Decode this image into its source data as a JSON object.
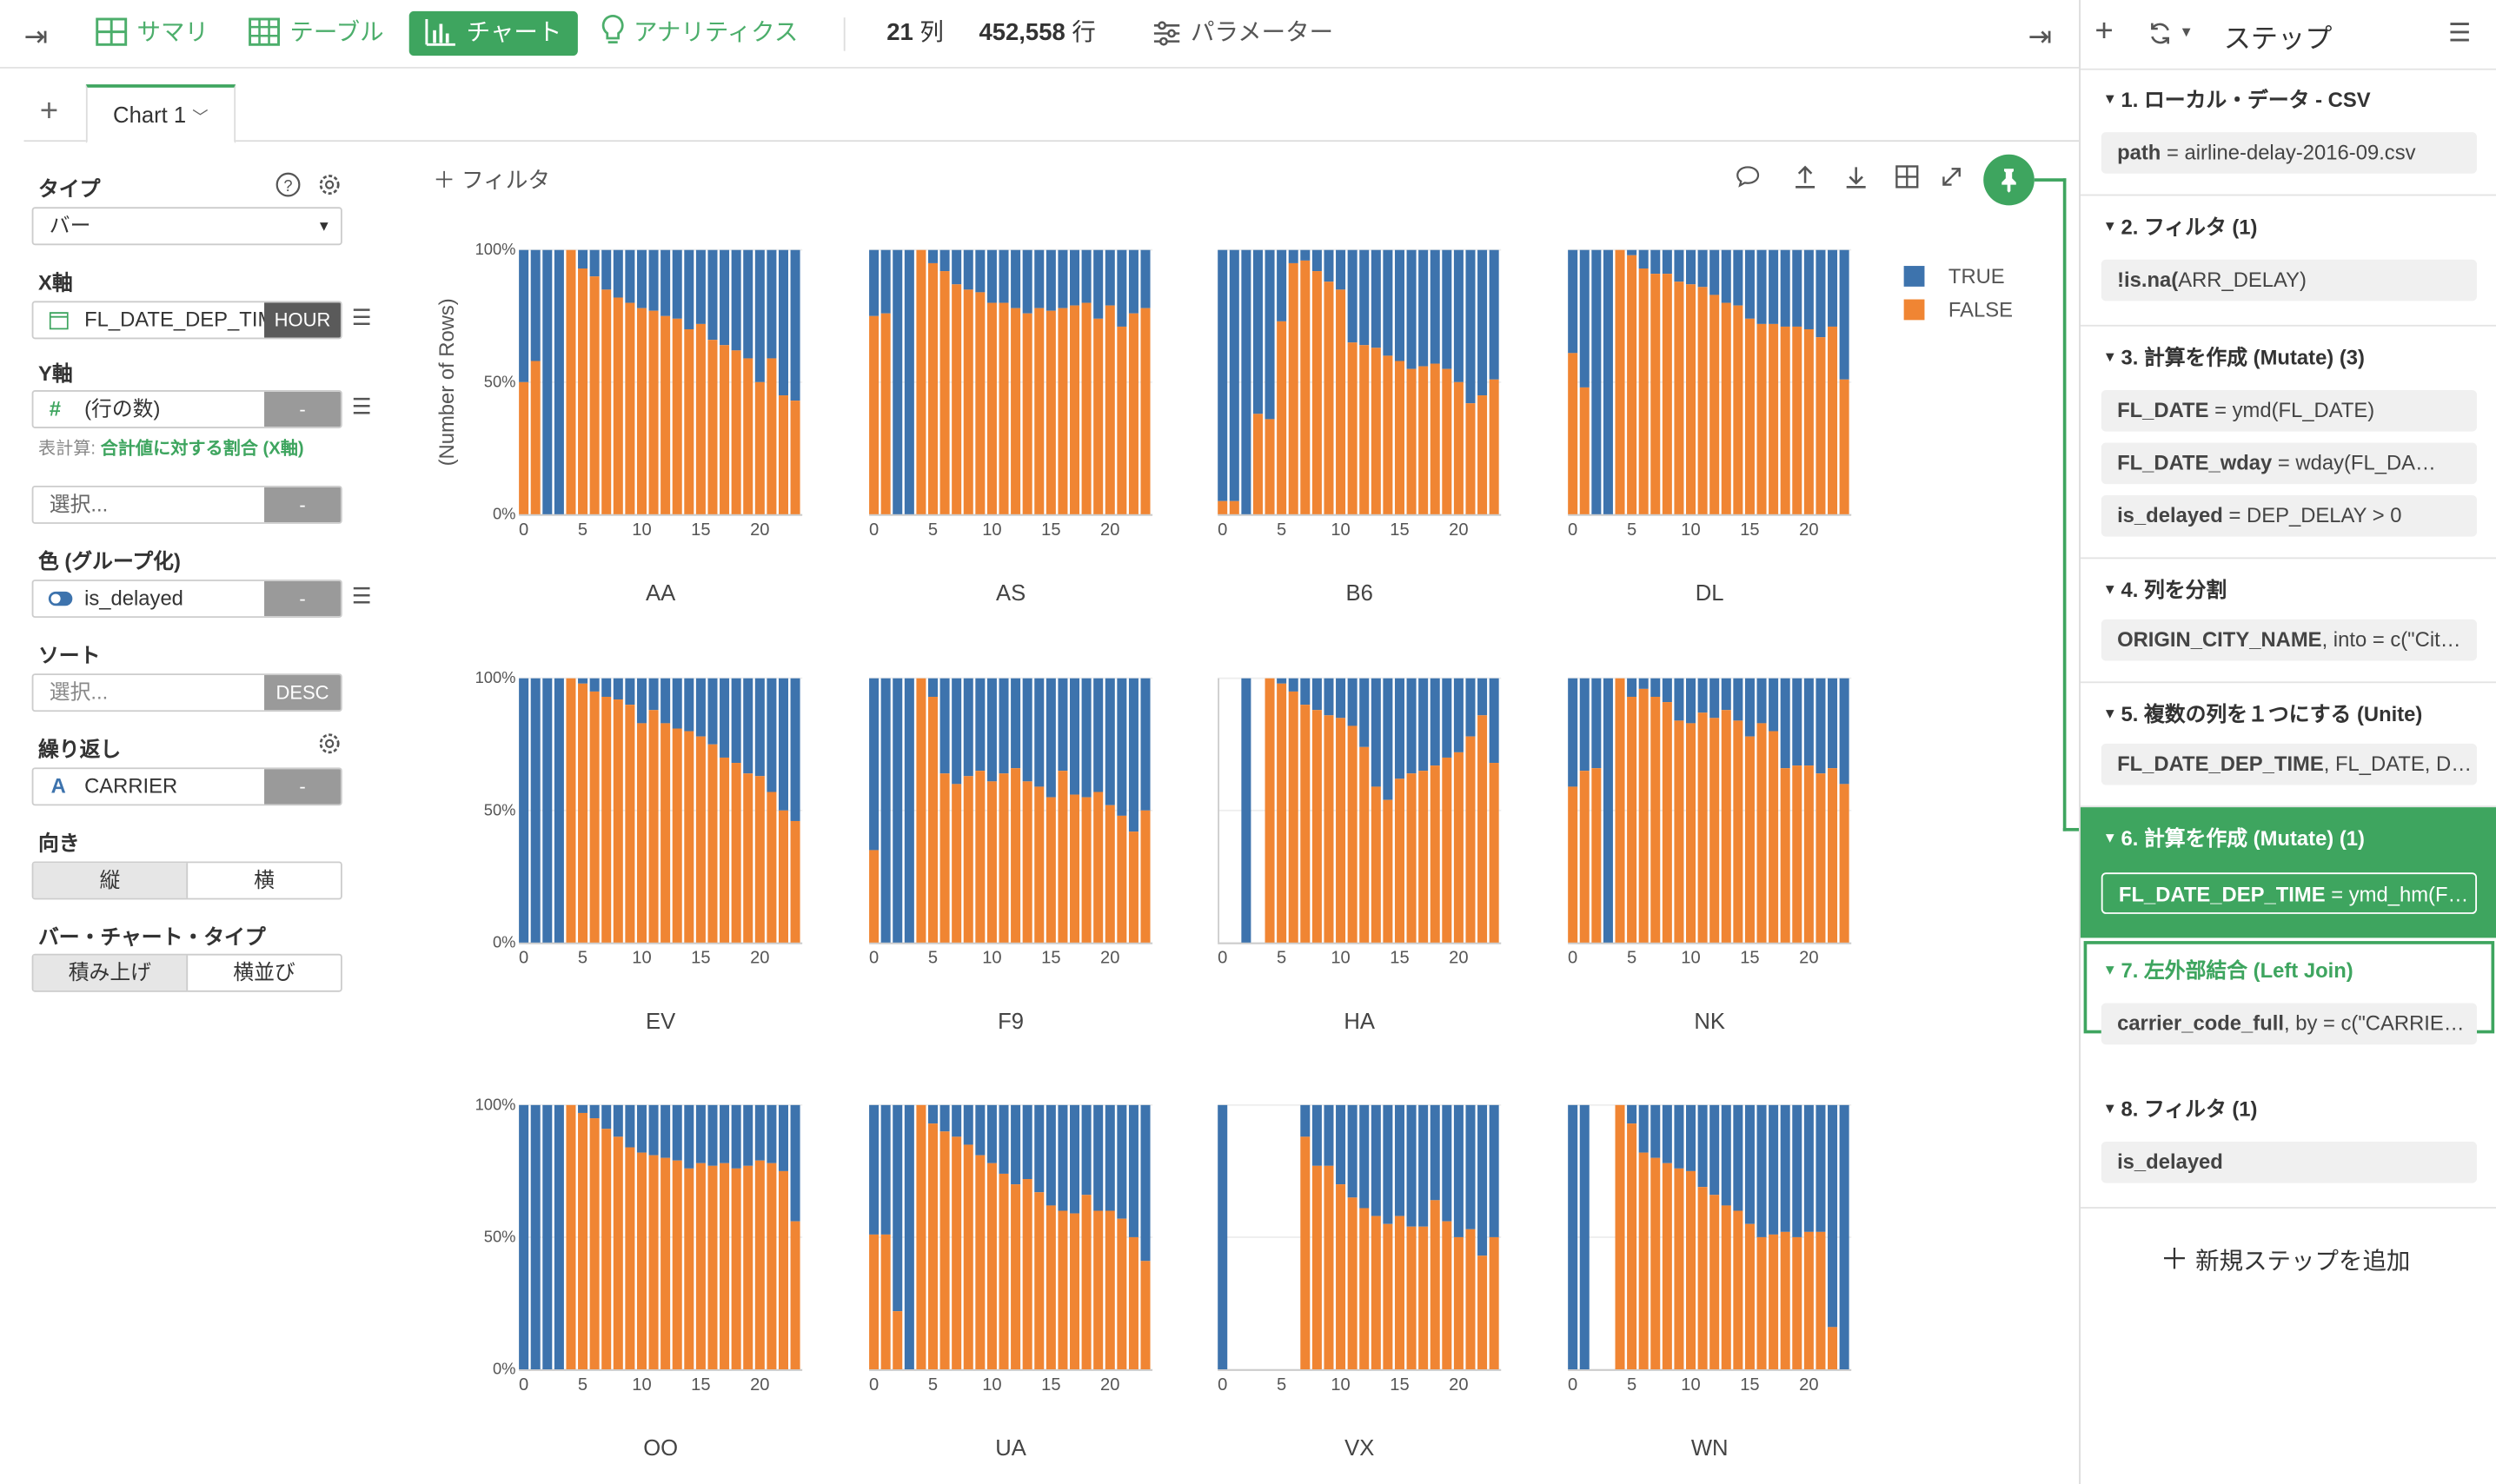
{
  "toolbar": {
    "summary": "サマリ",
    "table": "テーブル",
    "chart": "チャート",
    "analytics": "アナリティクス",
    "cols_num": "21",
    "cols_unit": "列",
    "rows_num": "452,558",
    "rows_unit": "行",
    "params": "パラメーター"
  },
  "right_header": {
    "title": "ステップ"
  },
  "tabs": {
    "chart1": "Chart 1"
  },
  "config": {
    "type_label": "タイプ",
    "type_value": "バー",
    "x_label": "X軸",
    "x_value": "FL_DATE_DEP_TIM",
    "x_unit": "HOUR",
    "y_label": "Y軸",
    "y_value": "(行の数)",
    "y_btn": "-",
    "calc_prefix": "表計算:",
    "calc_value": "合計値に対する割合 (X軸)",
    "select_placeholder": "選択...",
    "select_btn": "-",
    "color_label": "色 (グループ化)",
    "color_value": "is_delayed",
    "color_btn": "-",
    "sort_label": "ソート",
    "sort_placeholder": "選択...",
    "sort_btn": "DESC",
    "repeat_label": "繰り返し",
    "repeat_value": "CARRIER",
    "repeat_btn": "-",
    "orient_label": "向き",
    "orient_v": "縦",
    "orient_h": "横",
    "bartype_label": "バー・チャート・タイプ",
    "bartype_stack": "積み上げ",
    "bartype_side": "横並び"
  },
  "filter_label": "フィルタ",
  "steps": [
    {
      "head": "1. ローカル・データ - CSV",
      "items": [
        {
          "k": "path",
          "v": " = airline-delay-2016-09.csv"
        }
      ]
    },
    {
      "head": "2. フィルタ (1)",
      "items": [
        {
          "k": "!is.na(",
          "v": "ARR_DELAY)"
        }
      ]
    },
    {
      "head": "3. 計算を作成 (Mutate) (3)",
      "items": [
        {
          "k": "FL_DATE",
          "v": " = ymd(FL_DATE)"
        },
        {
          "k": "FL_DATE_wday",
          "v": " = wday(FL_DA…"
        },
        {
          "k": "is_delayed",
          "v": " = DEP_DELAY > 0"
        }
      ]
    },
    {
      "head": "4. 列を分割",
      "items": [
        {
          "k": "ORIGIN_CITY_NAME",
          "v": ", into = c(\"Cit…"
        }
      ]
    },
    {
      "head": "5. 複数の列を１つにする (Unite)",
      "items": [
        {
          "k": "FL_DATE_DEP_TIME",
          "v": ", FL_DATE, D…"
        }
      ]
    },
    {
      "head": "6. 計算を作成 (Mutate) (1)",
      "items": [
        {
          "k": "FL_DATE_DEP_TIME",
          "v": " = ymd_hm(F…"
        }
      ]
    },
    {
      "head": "7. 左外部結合 (Left Join)",
      "items": [
        {
          "k": "carrier_code_full",
          "v": ", by = c(\"CARRIE…"
        }
      ]
    },
    {
      "head": "8. フィルタ (1)",
      "items": [
        {
          "k": "is_delayed",
          "v": ""
        }
      ]
    }
  ],
  "add_step": "新規ステップを追加",
  "colors": {
    "accent": "#3ea55f",
    "true": "#3d73ad",
    "false": "#f08533"
  },
  "chart_data": {
    "type": "bar",
    "stacked": true,
    "ylabel": "(Number of Rows)",
    "yticks": [
      "0%",
      "50%",
      "100%"
    ],
    "xticks": [
      0,
      5,
      10,
      15,
      20
    ],
    "legend": [
      {
        "name": "TRUE",
        "color": "#3d73ad"
      },
      {
        "name": "FALSE",
        "color": "#f08533"
      }
    ],
    "x": [
      0,
      1,
      2,
      3,
      4,
      5,
      6,
      7,
      8,
      9,
      10,
      11,
      12,
      13,
      14,
      15,
      16,
      17,
      18,
      19,
      20,
      21,
      22,
      23
    ],
    "facets": [
      {
        "name": "AA",
        "false_pct": [
          50,
          58,
          0,
          0,
          100,
          93,
          90,
          85,
          82,
          80,
          78,
          77,
          75,
          74,
          70,
          72,
          66,
          64,
          62,
          59,
          50,
          59,
          45,
          43
        ]
      },
      {
        "name": "AS",
        "false_pct": [
          75,
          76,
          0,
          0,
          100,
          95,
          92,
          87,
          85,
          84,
          80,
          80,
          78,
          76,
          78,
          77,
          78,
          79,
          80,
          74,
          79,
          71,
          76,
          78
        ]
      },
      {
        "name": "B6",
        "false_pct": [
          5,
          5,
          0,
          38,
          36,
          73,
          95,
          96,
          92,
          88,
          85,
          65,
          64,
          63,
          60,
          58,
          55,
          56,
          57,
          55,
          50,
          42,
          45,
          51
        ]
      },
      {
        "name": "DL",
        "false_pct": [
          61,
          48,
          0,
          0,
          100,
          98,
          93,
          91,
          91,
          88,
          87,
          86,
          83,
          80,
          79,
          74,
          72,
          72,
          71,
          71,
          70,
          67,
          71,
          51
        ]
      },
      {
        "name": "EV",
        "false_pct": [
          0,
          0,
          0,
          0,
          100,
          98,
          95,
          93,
          92,
          90,
          83,
          88,
          83,
          81,
          80,
          78,
          75,
          70,
          68,
          64,
          63,
          57,
          50,
          46
        ]
      },
      {
        "name": "F9",
        "false_pct": [
          35,
          0,
          0,
          0,
          100,
          93,
          64,
          60,
          63,
          65,
          61,
          64,
          66,
          61,
          59,
          55,
          65,
          56,
          55,
          57,
          52,
          48,
          42,
          50
        ]
      },
      {
        "name": "HA",
        "false_pct": [
          0,
          0,
          0,
          0,
          100,
          98,
          95,
          90,
          88,
          86,
          85,
          82,
          74,
          59,
          54,
          62,
          64,
          65,
          67,
          70,
          72,
          78,
          86,
          68
        ]
      },
      {
        "name": "NK",
        "false_pct": [
          59,
          65,
          66,
          0,
          100,
          93,
          96,
          93,
          91,
          84,
          83,
          87,
          85,
          88,
          84,
          78,
          83,
          80,
          66,
          67,
          67,
          64,
          66,
          60
        ]
      },
      {
        "name": "OO",
        "false_pct": [
          0,
          0,
          0,
          0,
          100,
          97,
          95,
          91,
          88,
          84,
          82,
          81,
          80,
          79,
          76,
          78,
          77,
          78,
          76,
          77,
          79,
          78,
          75,
          56
        ]
      },
      {
        "name": "UA",
        "false_pct": [
          51,
          51,
          22,
          0,
          100,
          93,
          90,
          88,
          85,
          81,
          78,
          74,
          70,
          72,
          67,
          62,
          60,
          59,
          66,
          60,
          60,
          57,
          50,
          41
        ]
      },
      {
        "name": "VX",
        "false_pct": [
          0,
          0,
          0,
          0,
          0,
          0,
          0,
          88,
          77,
          77,
          70,
          65,
          61,
          58,
          55,
          58,
          54,
          54,
          64,
          56,
          50,
          53,
          43,
          50
        ]
      },
      {
        "name": "WN",
        "false_pct": [
          0,
          0,
          0,
          0,
          100,
          93,
          82,
          80,
          78,
          76,
          75,
          69,
          66,
          62,
          60,
          55,
          50,
          51,
          52,
          50,
          52,
          52,
          16,
          0
        ]
      }
    ]
  }
}
